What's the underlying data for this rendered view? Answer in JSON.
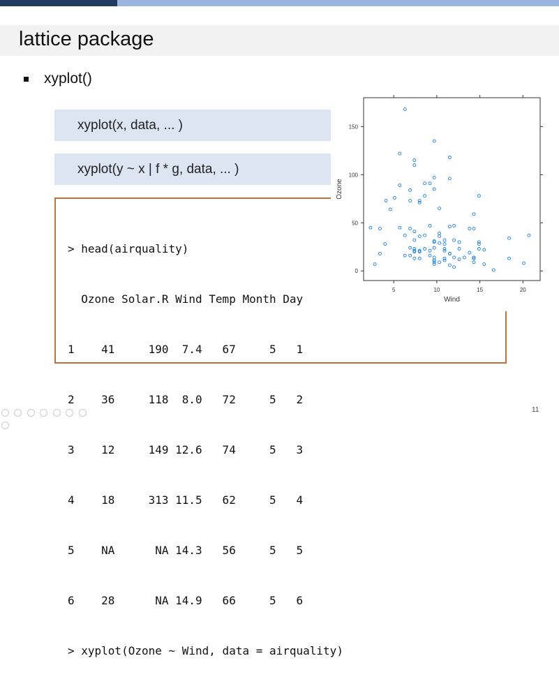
{
  "slide": {
    "title": "lattice package",
    "bullet": "xyplot()",
    "code_boxes": [
      "xyplot(x, data, ... )",
      "xyplot(y ~ x | f  * g, data, ... )"
    ],
    "page_number": "11"
  },
  "console": {
    "lines": [
      "> head(airquality)",
      "  Ozone Solar.R Wind Temp Month Day",
      "1    41     190  7.4   67     5   1",
      "2    36     118  8.0   72     5   2",
      "3    12     149 12.6   74     5   3",
      "4    18     313 11.5   62     5   4",
      "5    NA      NA 14.3   56     5   5",
      "6    28      NA 14.9   66     5   6",
      "> xyplot(Ozone ~ Wind, data = airquality)"
    ]
  },
  "chart_data": {
    "type": "scatter",
    "xlabel": "Wind",
    "ylabel": "Ozone",
    "xlim": [
      1.5,
      22
    ],
    "ylim": [
      -10,
      180
    ],
    "x_ticks": [
      5,
      10,
      15,
      20
    ],
    "y_ticks": [
      0,
      50,
      100,
      150
    ],
    "marker_color": "#1a7fe0",
    "points": [
      [
        7.4,
        41
      ],
      [
        8.0,
        36
      ],
      [
        12.6,
        12
      ],
      [
        11.5,
        18
      ],
      [
        14.9,
        28
      ],
      [
        8.6,
        23
      ],
      [
        13.8,
        19
      ],
      [
        20.1,
        8
      ],
      [
        9.7,
        7
      ],
      [
        9.2,
        16
      ],
      [
        10.9,
        11
      ],
      [
        13.2,
        14
      ],
      [
        11.5,
        18
      ],
      [
        12.0,
        14
      ],
      [
        18.4,
        34
      ],
      [
        11.5,
        6
      ],
      [
        9.7,
        30
      ],
      [
        9.7,
        11
      ],
      [
        16.6,
        1
      ],
      [
        9.7,
        11
      ],
      [
        12.0,
        4
      ],
      [
        12.0,
        32
      ],
      [
        14.9,
        23
      ],
      [
        5.7,
        45
      ],
      [
        7.4,
        115
      ],
      [
        8.6,
        37
      ],
      [
        14.3,
        44
      ],
      [
        14.9,
        78
      ],
      [
        14.3,
        13
      ],
      [
        14.9,
        30
      ],
      [
        8.0,
        71
      ],
      [
        4.1,
        73
      ],
      [
        9.2,
        91
      ],
      [
        9.2,
        47
      ],
      [
        10.9,
        32
      ],
      [
        4.6,
        64
      ],
      [
        10.3,
        39
      ],
      [
        10.9,
        21
      ],
      [
        9.7,
        135
      ],
      [
        10.3,
        29
      ],
      [
        6.3,
        37
      ],
      [
        5.7,
        89
      ],
      [
        7.4,
        110
      ],
      [
        6.9,
        44
      ],
      [
        10.9,
        28
      ],
      [
        10.3,
        65
      ],
      [
        15.5,
        22
      ],
      [
        14.3,
        59
      ],
      [
        12.6,
        23
      ],
      [
        9.7,
        31
      ],
      [
        3.4,
        44
      ],
      [
        8.0,
        21
      ],
      [
        9.7,
        9
      ],
      [
        2.3,
        45
      ],
      [
        6.3,
        168
      ],
      [
        6.9,
        73
      ],
      [
        5.1,
        76
      ],
      [
        11.5,
        118
      ],
      [
        6.9,
        84
      ],
      [
        9.7,
        85
      ],
      [
        11.5,
        96
      ],
      [
        8.6,
        78
      ],
      [
        8.0,
        73
      ],
      [
        8.6,
        91
      ],
      [
        12.0,
        47
      ],
      [
        7.4,
        32
      ],
      [
        7.4,
        20
      ],
      [
        7.4,
        23
      ],
      [
        9.2,
        21
      ],
      [
        6.9,
        24
      ],
      [
        13.8,
        44
      ],
      [
        7.4,
        21
      ],
      [
        4.0,
        28
      ],
      [
        10.3,
        9
      ],
      [
        8.0,
        13
      ],
      [
        11.5,
        46
      ],
      [
        11.5,
        18
      ],
      [
        10.9,
        13
      ],
      [
        9.7,
        24
      ],
      [
        6.3,
        16
      ],
      [
        7.4,
        13
      ],
      [
        10.9,
        23
      ],
      [
        10.3,
        36
      ],
      [
        15.5,
        7
      ],
      [
        14.3,
        14
      ],
      [
        12.6,
        30
      ],
      [
        9.7,
        14
      ],
      [
        3.4,
        18
      ],
      [
        8.0,
        20
      ],
      [
        5.7,
        122
      ],
      [
        9.7,
        97
      ],
      [
        2.8,
        7
      ],
      [
        6.9,
        16
      ],
      [
        14.3,
        9
      ],
      [
        20.7,
        37
      ],
      [
        18.4,
        13
      ]
    ]
  }
}
